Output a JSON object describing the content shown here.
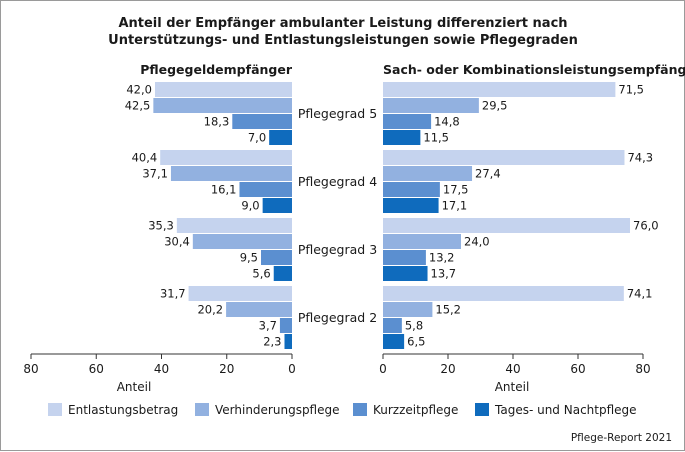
{
  "chart_data": {
    "type": "bar",
    "orientation": "horizontal",
    "title_lines": [
      "Anteil der Empfänger ambulanter Leistung differenziert nach",
      "Unterstützungs- und Entlastungsleistungen sowie Pflegegraden"
    ],
    "categories": [
      "Pflegegrad 5",
      "Pflegegrad 4",
      "Pflegegrad 3",
      "Pflegegrad 2"
    ],
    "series": [
      {
        "name": "Entlastungsbetrag",
        "color": "#c5d3ee"
      },
      {
        "name": "Verhinderungspflege",
        "color": "#92b1e0"
      },
      {
        "name": "Kurzzeitpflege",
        "color": "#5b8fd0"
      },
      {
        "name": "Tages- und Nachtpflege",
        "color": "#0f6bbd"
      }
    ],
    "panels": [
      {
        "title": "Pflegegeldempfänger",
        "direction": "left",
        "values": [
          [
            42.0,
            42.5,
            18.3,
            7.0
          ],
          [
            40.4,
            37.1,
            16.1,
            9.0
          ],
          [
            35.3,
            30.4,
            9.5,
            5.6
          ],
          [
            31.7,
            20.2,
            3.7,
            2.3
          ]
        ],
        "labels": [
          [
            "42,0",
            "42,5",
            "18,3",
            "7,0"
          ],
          [
            "40,4",
            "37,1",
            "16,1",
            "9,0"
          ],
          [
            "35,3",
            "30,4",
            "9,5",
            "5,6"
          ],
          [
            "31,7",
            "20,2",
            "3,7",
            "2,3"
          ]
        ],
        "xticks": [
          "80",
          "60",
          "40",
          "20",
          "0"
        ],
        "xlabel": "Anteil",
        "xlim": [
          0,
          80
        ]
      },
      {
        "title": "Sach- oder Kombinationsleistungsempfänger",
        "direction": "right",
        "values": [
          [
            71.5,
            29.5,
            14.8,
            11.5
          ],
          [
            74.3,
            27.4,
            17.5,
            17.1
          ],
          [
            76.0,
            24.0,
            13.2,
            13.7
          ],
          [
            74.1,
            15.2,
            5.8,
            6.5
          ]
        ],
        "labels": [
          [
            "71,5",
            "29,5",
            "14,8",
            "11,5"
          ],
          [
            "74,3",
            "27,4",
            "17,5",
            "17,1"
          ],
          [
            "76,0",
            "24,0",
            "13,2",
            "13,7"
          ],
          [
            "74,1",
            "15,2",
            "5,8",
            "6,5"
          ]
        ],
        "xticks": [
          "0",
          "20",
          "40",
          "60",
          "80"
        ],
        "xlabel": "Anteil",
        "xlim": [
          0,
          80
        ]
      }
    ],
    "legend_position": "bottom",
    "source": "Pflege-Report 2021"
  }
}
